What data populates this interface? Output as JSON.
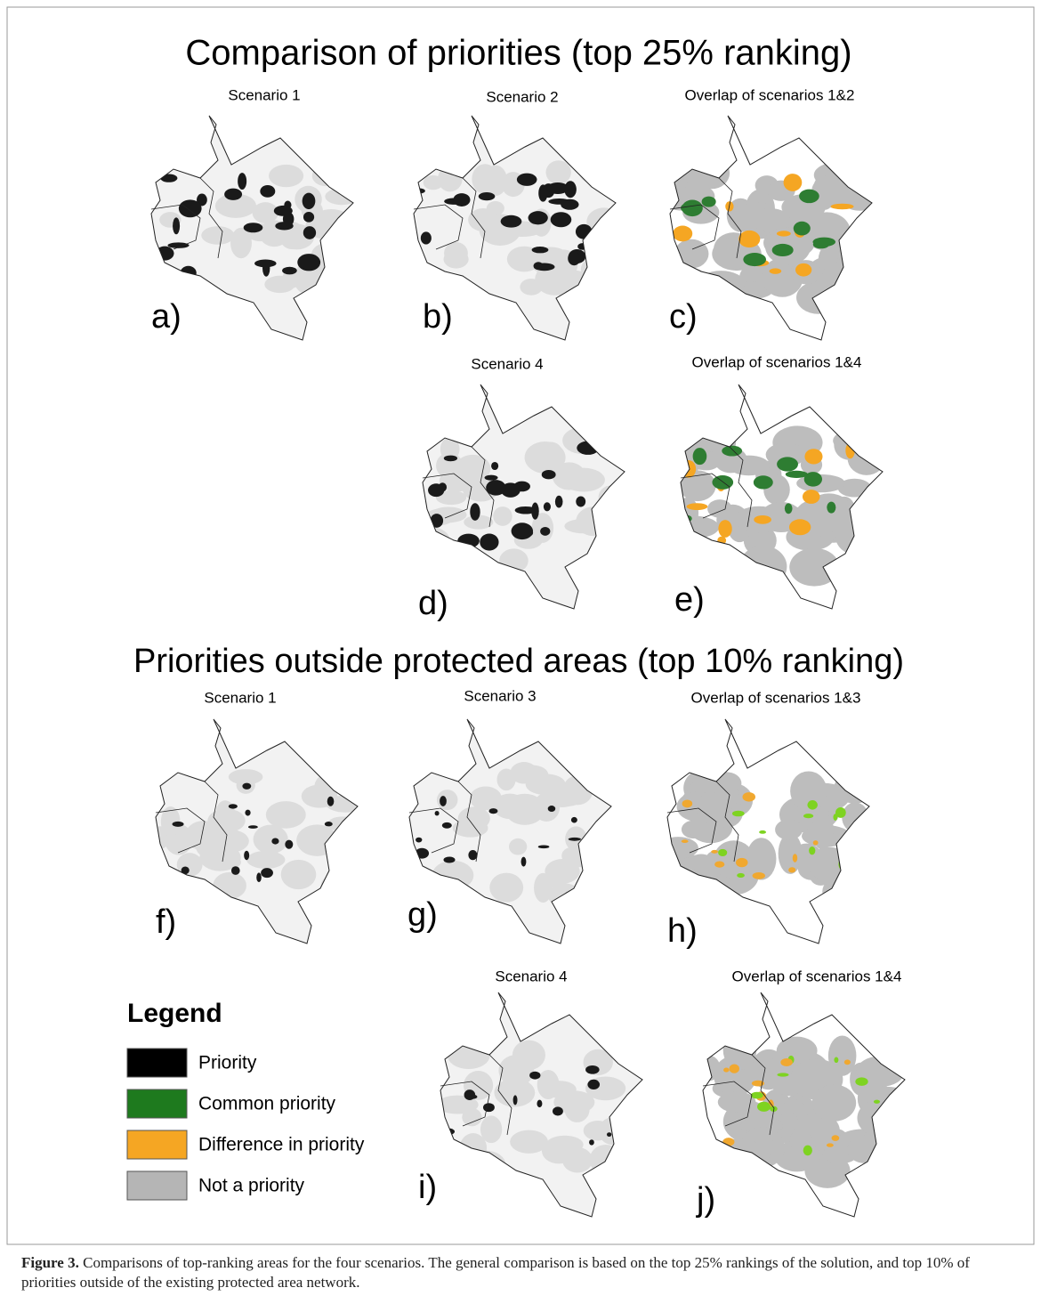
{
  "figure": {
    "sections": [
      {
        "title": "Comparison of priorities (top 25% ranking)",
        "panels": [
          {
            "title": "Scenario 1",
            "label": "a)"
          },
          {
            "title": "Scenario 2",
            "label": "b)"
          },
          {
            "title": "Overlap of scenarios 1&2",
            "label": "c)"
          },
          {
            "title": "Scenario 4",
            "label": "d)"
          },
          {
            "title": "Overlap of scenarios 1&4",
            "label": "e)"
          }
        ]
      },
      {
        "title": "Priorities outside protected areas (top 10% ranking)",
        "panels": [
          {
            "title": "Scenario 1",
            "label": "f)"
          },
          {
            "title": "Scenario 3",
            "label": "g)"
          },
          {
            "title": "Overlap of scenarios 1&3",
            "label": "h)"
          },
          {
            "title": "Scenario 4",
            "label": "i)"
          },
          {
            "title": "Overlap of scenarios 1&4",
            "label": "j)"
          }
        ]
      }
    ],
    "legend": {
      "title": "Legend",
      "items": [
        "Priority",
        "Common priority",
        "Difference in priority",
        "Not a priority"
      ]
    }
  },
  "caption": {
    "label": "Figure 3.",
    "text": " Comparisons of top-ranking areas for the four scenarios. The general comparison is based on the top 25% rankings of the solution, and top 10% of priorities outside of the existing protected area network."
  }
}
